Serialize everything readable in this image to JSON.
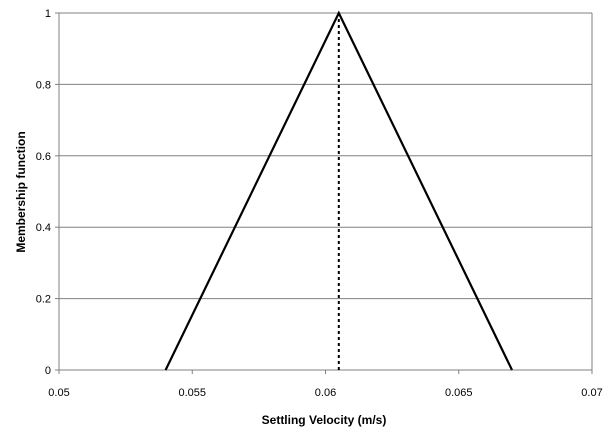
{
  "chart_data": {
    "type": "line",
    "title": "",
    "xlabel": "Settling Velocity (m/s)",
    "ylabel": "Membership function",
    "xlim": [
      0.05,
      0.07
    ],
    "ylim": [
      0,
      1
    ],
    "x_ticks": [
      0.05,
      0.055,
      0.06,
      0.065,
      0.07
    ],
    "x_tick_labels": [
      "0.05",
      "0.055",
      "0.06",
      "0.065",
      "0.07"
    ],
    "y_ticks": [
      0,
      0.2,
      0.4,
      0.6,
      0.8,
      1
    ],
    "y_tick_labels": [
      "0",
      "0.2",
      "0.4",
      "0.6",
      "0.8",
      "1"
    ],
    "grid": "horizontal",
    "series": [
      {
        "style": "solid",
        "color": "#000000",
        "x": [
          0.054,
          0.0605,
          0.067
        ],
        "y": [
          0,
          1,
          0
        ]
      },
      {
        "style": "dotted",
        "color": "#000000",
        "x": [
          0.0605,
          0.0605
        ],
        "y": [
          0,
          1
        ]
      }
    ]
  }
}
